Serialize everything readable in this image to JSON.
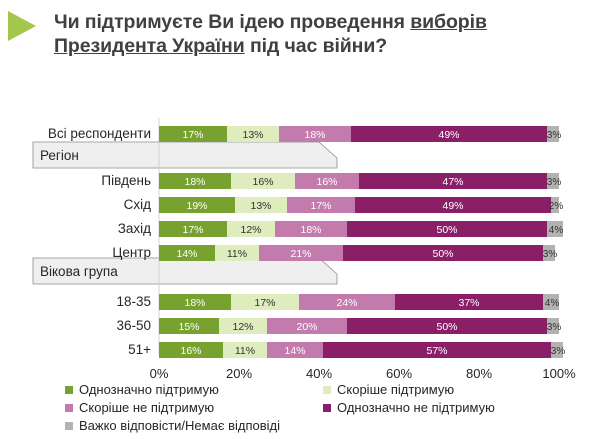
{
  "title": {
    "part1": "Чи підтримуєте Ви ідею проведення ",
    "underline1": "виборів",
    "underline2": "Президента України",
    "part2": " під час війни?"
  },
  "chart_data": {
    "type": "bar",
    "stacked": true,
    "orientation": "horizontal",
    "categories": [
      "Всі респонденти",
      "Південь",
      "Схід",
      "Захід",
      "Центр",
      "18-35",
      "36-50",
      "51+"
    ],
    "groups": [
      {
        "label": "Регіон",
        "starts_before": "Південь"
      },
      {
        "label": "Вікова група",
        "starts_before": "18-35"
      }
    ],
    "series": [
      {
        "name": "Однозначно підтримую",
        "color": "#78a22f",
        "values": [
          17,
          18,
          19,
          17,
          14,
          18,
          15,
          16
        ]
      },
      {
        "name": "Скоріше підтримую",
        "color": "#dfecbd",
        "values": [
          13,
          16,
          13,
          12,
          11,
          17,
          12,
          11
        ]
      },
      {
        "name": "Скоріше не підтримую",
        "color": "#c27bac",
        "values": [
          18,
          16,
          17,
          18,
          21,
          24,
          20,
          14
        ]
      },
      {
        "name": "Однозначно не підтримую",
        "color": "#8a1f68",
        "values": [
          49,
          47,
          49,
          50,
          50,
          37,
          50,
          57
        ]
      },
      {
        "name": "Важко відповісти/Немає відповіді",
        "color": "#b2b2b2",
        "values": [
          3,
          3,
          2,
          4,
          3,
          4,
          3,
          3
        ]
      }
    ],
    "xlim": [
      0,
      100
    ],
    "xticks": [
      "0%",
      "20%",
      "40%",
      "60%",
      "80%",
      "100%"
    ],
    "legend_position": "bottom"
  },
  "colors": {
    "title_arrow": "#a3c64d",
    "group_band": "#efefef"
  }
}
